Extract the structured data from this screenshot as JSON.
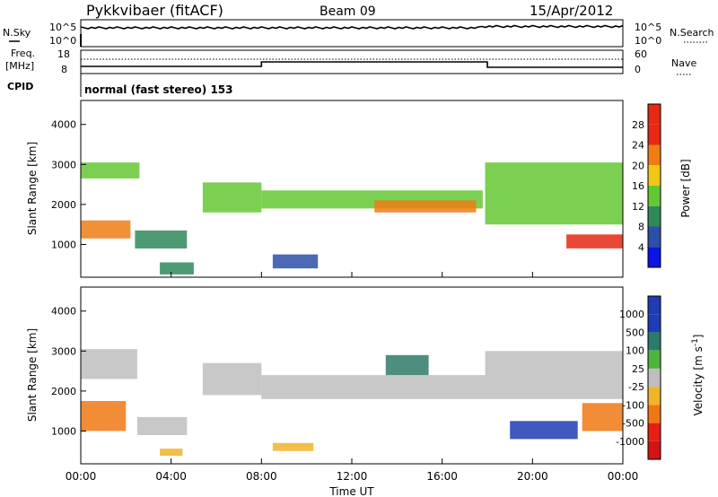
{
  "header": {
    "station": "Pykkvibaer (fitACF)",
    "beam": "Beam 09",
    "date": "15/Apr/2012"
  },
  "top_panels": {
    "nsky_label": "N.Sky",
    "nsearch_label": "N.Search",
    "left_ticks_top": [
      "10^5",
      "10^0"
    ],
    "right_ticks_top": [
      "10^5",
      "10^0"
    ],
    "freq_label_1": "Freq.",
    "freq_label_2": "[MHz]",
    "freq_ticks": [
      "18",
      "8"
    ],
    "nave_label": "Nave",
    "nave_ticks": [
      "60",
      "0"
    ],
    "cpid_label": "CPID",
    "cpid_text": "normal (fast stereo) 153"
  },
  "colors": {
    "power": [
      "#0a14e6",
      "#2d4fa8",
      "#2f8a5a",
      "#64c832",
      "#f0c814",
      "#f07d14",
      "#e62814"
    ],
    "velocity": [
      "#1e3cb4",
      "#2e7a6a",
      "#50b43c",
      "#bebebe",
      "#f0b428",
      "#f07814",
      "#e61e14",
      "#d21414"
    ]
  },
  "chart_data": [
    {
      "type": "heatmap",
      "name": "power",
      "xlabel": "",
      "ylabel": "Slant Range [km]",
      "x_ticks": [
        "00:00",
        "04:00",
        "08:00",
        "12:00",
        "16:00",
        "20:00",
        "00:00"
      ],
      "x_range_hours": [
        0,
        24
      ],
      "y_ticks": [
        "1000",
        "2000",
        "3000",
        "4000"
      ],
      "y_range_km": [
        180,
        4600
      ],
      "colorbar": {
        "label": "Power [dB]",
        "ticks": [
          "4",
          "8",
          "12",
          "16",
          "20",
          "24",
          "28"
        ],
        "range": [
          0,
          30
        ]
      },
      "regions": [
        {
          "t0": 0.0,
          "t1": 2.6,
          "r0": 2650,
          "r1": 3050,
          "level": 3
        },
        {
          "t0": 0.0,
          "t1": 2.2,
          "r0": 1150,
          "r1": 1600,
          "level": 5
        },
        {
          "t0": 2.4,
          "t1": 4.7,
          "r0": 900,
          "r1": 1350,
          "level": 2
        },
        {
          "t0": 5.4,
          "t1": 8.0,
          "r0": 1800,
          "r1": 2550,
          "level": 3
        },
        {
          "t0": 8.0,
          "t1": 17.8,
          "r0": 1900,
          "r1": 2350,
          "level": 3
        },
        {
          "t0": 13.0,
          "t1": 17.5,
          "r0": 1800,
          "r1": 2100,
          "level": 5
        },
        {
          "t0": 17.9,
          "t1": 24.0,
          "r0": 1500,
          "r1": 3050,
          "level": 3
        },
        {
          "t0": 21.5,
          "t1": 24.0,
          "r0": 900,
          "r1": 1250,
          "level": 6
        },
        {
          "t0": 3.5,
          "t1": 5.0,
          "r0": 250,
          "r1": 550,
          "level": 2
        },
        {
          "t0": 8.5,
          "t1": 10.5,
          "r0": 400,
          "r1": 750,
          "level": 1
        }
      ]
    },
    {
      "type": "heatmap",
      "name": "velocity",
      "xlabel": "Time UT",
      "ylabel": "Slant Range [km]",
      "x_ticks": [
        "00:00",
        "04:00",
        "08:00",
        "12:00",
        "16:00",
        "20:00",
        "00:00"
      ],
      "x_range_hours": [
        0,
        24
      ],
      "y_ticks": [
        "1000",
        "2000",
        "3000",
        "4000"
      ],
      "y_range_km": [
        180,
        4600
      ],
      "colorbar": {
        "label": "Velocity [m s^-1]",
        "ticks": [
          "1000",
          "500",
          "100",
          "25",
          "-25",
          "-100",
          "-500",
          "-1000"
        ]
      },
      "regions": [
        {
          "t0": 0.0,
          "t1": 2.5,
          "r0": 2300,
          "r1": 3050,
          "level": 3
        },
        {
          "t0": 0.0,
          "t1": 2.0,
          "r0": 1000,
          "r1": 1750,
          "level": 5
        },
        {
          "t0": 2.5,
          "t1": 4.7,
          "r0": 900,
          "r1": 1350,
          "level": 3
        },
        {
          "t0": 5.4,
          "t1": 8.0,
          "r0": 1900,
          "r1": 2700,
          "level": 3
        },
        {
          "t0": 8.0,
          "t1": 17.9,
          "r0": 1800,
          "r1": 2400,
          "level": 3
        },
        {
          "t0": 13.5,
          "t1": 15.4,
          "r0": 2400,
          "r1": 2900,
          "level": 1
        },
        {
          "t0": 17.9,
          "t1": 24.0,
          "r0": 1800,
          "r1": 3000,
          "level": 3
        },
        {
          "t0": 22.2,
          "t1": 24.0,
          "r0": 1000,
          "r1": 1700,
          "level": 5
        },
        {
          "t0": 19.0,
          "t1": 22.0,
          "r0": 800,
          "r1": 1250,
          "level": 0
        },
        {
          "t0": 3.5,
          "t1": 4.5,
          "r0": 380,
          "r1": 560,
          "level": 4
        },
        {
          "t0": 8.5,
          "t1": 10.3,
          "r0": 500,
          "r1": 700,
          "level": 4
        }
      ]
    }
  ]
}
